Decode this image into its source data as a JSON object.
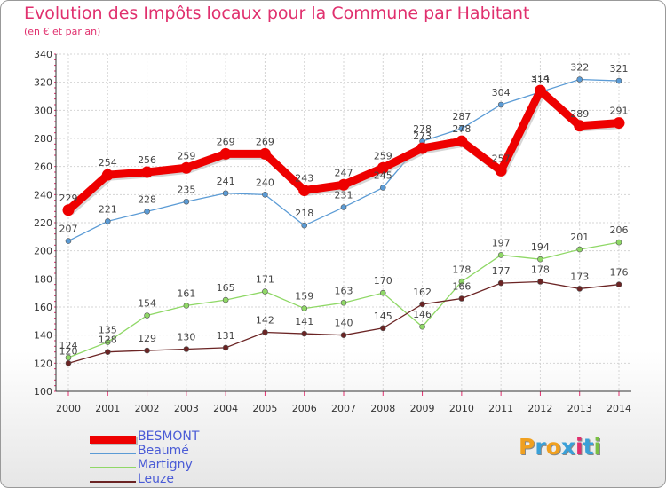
{
  "title": "Evolution des Impôts locaux pour la Commune par Habitant",
  "subtitle": "(en € et par an)",
  "logo": {
    "text": "Proxiti",
    "colors": [
      "#f0a020",
      "#3aa0d8",
      "#f0a020",
      "#3aa0d8",
      "#e0306e",
      "#3aa0d8",
      "#7ac043"
    ]
  },
  "chart_data": {
    "type": "line",
    "title": "Evolution des Impôts locaux pour la Commune par Habitant",
    "subtitle": "(en € et par an)",
    "xlabel": "",
    "ylabel": "",
    "x": [
      "2000",
      "2001",
      "2002",
      "2003",
      "2004",
      "2005",
      "2006",
      "2007",
      "2008",
      "2009",
      "2010",
      "2011",
      "2012",
      "2013",
      "2014"
    ],
    "ylim": [
      100,
      340
    ],
    "yticks": [
      100,
      120,
      140,
      160,
      180,
      200,
      220,
      240,
      260,
      280,
      300,
      320,
      340
    ],
    "grid": true,
    "legend_position": "bottom-left",
    "series": [
      {
        "name": "BESMONT",
        "color": "#ee0000",
        "thick": true,
        "values": [
          229,
          254,
          256,
          259,
          269,
          269,
          243,
          247,
          259,
          273,
          278,
          257,
          314,
          289,
          291
        ]
      },
      {
        "name": "Beaumé",
        "color": "#5b9bd5",
        "thick": false,
        "values": [
          207,
          221,
          228,
          235,
          241,
          240,
          218,
          231,
          245,
          278,
          287,
          304,
          313,
          322,
          321
        ]
      },
      {
        "name": "Martigny",
        "color": "#8fd866",
        "thick": false,
        "values": [
          124,
          135,
          154,
          161,
          165,
          171,
          159,
          163,
          170,
          146,
          178,
          197,
          194,
          201,
          206
        ]
      },
      {
        "name": "Leuze",
        "color": "#6b2424",
        "thick": false,
        "values": [
          120,
          128,
          129,
          130,
          131,
          142,
          141,
          140,
          145,
          162,
          166,
          177,
          178,
          173,
          176
        ]
      }
    ]
  }
}
